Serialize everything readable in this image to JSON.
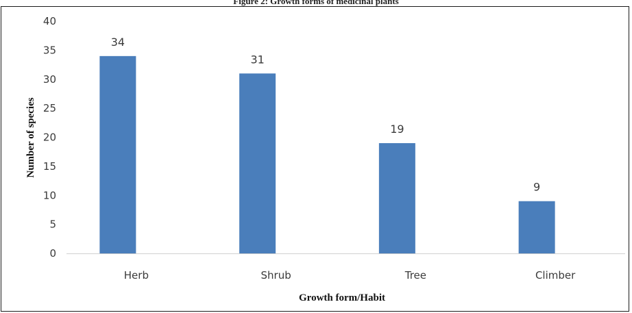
{
  "figure": {
    "caption": "Figure 2: Growth forms of medicinal plants"
  },
  "chart_data": {
    "type": "bar",
    "title": "",
    "xlabel": "Growth form/Habit",
    "ylabel": "Number of species",
    "categories": [
      "Herb",
      "Shrub",
      "Tree",
      "Climber"
    ],
    "values": [
      34,
      31,
      19,
      9
    ],
    "ylim": [
      0,
      40
    ],
    "yticks": [
      0,
      5,
      10,
      15,
      20,
      25,
      30,
      35,
      40
    ],
    "data_labels": [
      "34",
      "31",
      "19",
      "9"
    ],
    "bar_color": "#4a7ebb",
    "grid": false,
    "legend": "none"
  }
}
